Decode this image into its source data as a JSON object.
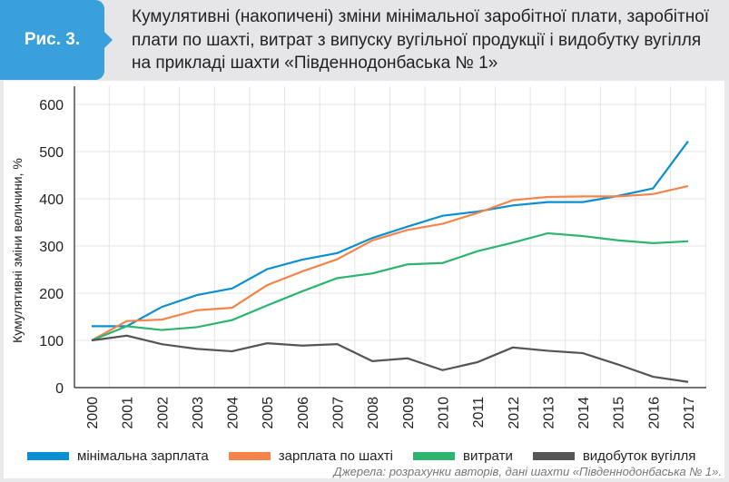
{
  "header": {
    "figure_label": "Рис. 3.",
    "title": "Кумулятивні (накопичені) зміни мінімальної заробітної плати, заробітної плати по шахті, витрат з випуску вугільної продукції і видобутку вугілля на прикладі шахти «Південнодонбаська № 1»"
  },
  "source": "Джерела: розрахунки авторів, дані шахти «Південнодонбаська № 1».",
  "chart_data": {
    "type": "line",
    "title": "",
    "xlabel": "",
    "ylabel": "Кумулятивні зміни величини, %",
    "ylim": [
      0,
      600
    ],
    "yticks": [
      "0",
      "100",
      "200",
      "300",
      "400",
      "500",
      "600"
    ],
    "x": [
      "2000",
      "2001",
      "2002",
      "2003",
      "2004",
      "2005",
      "2006",
      "2007",
      "2008",
      "2009",
      "2010",
      "2011",
      "2012",
      "2013",
      "2014",
      "2015",
      "2016",
      "2017"
    ],
    "grid": true,
    "legend_position": "bottom",
    "series": [
      {
        "name": "мінімальна зарплата",
        "color": "#0a8fd3",
        "values": [
          130,
          130,
          171,
          196,
          210,
          251,
          271,
          285,
          317,
          341,
          364,
          373,
          386,
          393,
          393,
          406,
          422,
          522
        ]
      },
      {
        "name": "зарплата по шахті",
        "color": "#f5844a",
        "values": [
          100,
          141,
          144,
          164,
          169,
          217,
          246,
          272,
          312,
          334,
          347,
          370,
          397,
          404,
          405,
          405,
          410,
          427
        ]
      },
      {
        "name": "витрати",
        "color": "#2db56f",
        "values": [
          100,
          130,
          122,
          128,
          143,
          174,
          204,
          232,
          242,
          261,
          264,
          289,
          307,
          327,
          321,
          312,
          306,
          310
        ]
      },
      {
        "name": "видобуток вугілля",
        "color": "#555555",
        "values": [
          100,
          110,
          92,
          82,
          77,
          94,
          89,
          92,
          56,
          62,
          37,
          54,
          85,
          78,
          73,
          49,
          23,
          12
        ]
      }
    ]
  }
}
